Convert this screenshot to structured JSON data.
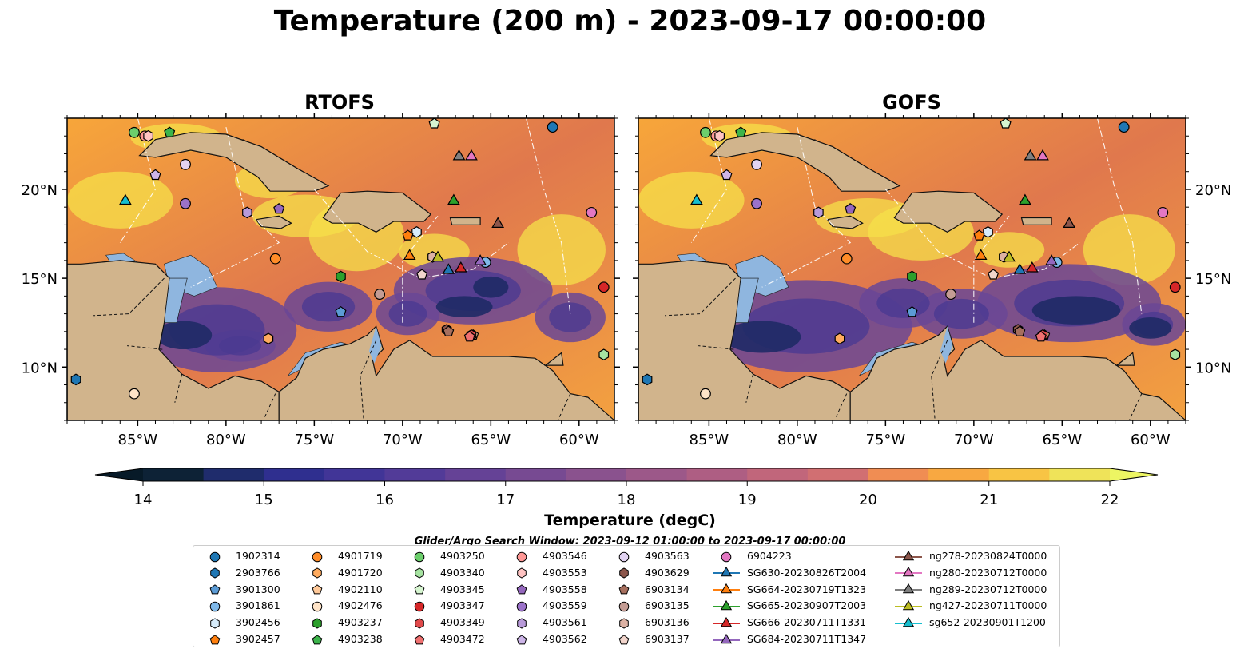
{
  "title": "Temperature (200 m) - 2023-09-17 00:00:00",
  "panels": [
    {
      "title": "RTOFS"
    },
    {
      "title": "GOFS"
    }
  ],
  "lat_ticks": [
    "10°N",
    "15°N",
    "20°N"
  ],
  "lon_ticks": [
    "85°W",
    "80°W",
    "75°W",
    "70°W",
    "65°W",
    "60°W"
  ],
  "map_extent": {
    "lon": [
      -89.0,
      -58.0
    ],
    "lat": [
      7.0,
      24.0
    ]
  },
  "colorbar": {
    "label": "Temperature (degC)",
    "ticks": [
      "14",
      "15",
      "16",
      "17",
      "18",
      "19",
      "20",
      "21",
      "22"
    ],
    "range": [
      14,
      22
    ],
    "colormap": "thermal",
    "extend": "both"
  },
  "search_window": "Glider/Argo Search Window: 2023-09-12 01:00:00 to 2023-09-17 00:00:00",
  "legend": [
    {
      "label": "1902314",
      "marker": "circle",
      "color": "#1f77b4"
    },
    {
      "label": "2903766",
      "marker": "hexagon",
      "color": "#1f77b4"
    },
    {
      "label": "3901300",
      "marker": "pentagon",
      "color": "#5b9bd5"
    },
    {
      "label": "3901861",
      "marker": "circle",
      "color": "#7fb8e8"
    },
    {
      "label": "3902456",
      "marker": "hexagon",
      "color": "#d7ecfb"
    },
    {
      "label": "3902457",
      "marker": "pentagon",
      "color": "#ff7f0e"
    },
    {
      "label": "4901719",
      "marker": "circle",
      "color": "#ff8c28"
    },
    {
      "label": "4901720",
      "marker": "hexagon",
      "color": "#ffab5e"
    },
    {
      "label": "4902110",
      "marker": "pentagon",
      "color": "#ffc999"
    },
    {
      "label": "4902476",
      "marker": "circle",
      "color": "#ffe4c8"
    },
    {
      "label": "4903237",
      "marker": "hexagon",
      "color": "#2ca02c"
    },
    {
      "label": "4903238",
      "marker": "pentagon",
      "color": "#3cb44b"
    },
    {
      "label": "4903250",
      "marker": "circle",
      "color": "#6ccf6c"
    },
    {
      "label": "4903340",
      "marker": "hexagon",
      "color": "#a6e3a1"
    },
    {
      "label": "4903345",
      "marker": "pentagon",
      "color": "#d6f5d0"
    },
    {
      "label": "4903347",
      "marker": "circle",
      "color": "#d62728"
    },
    {
      "label": "4903349",
      "marker": "hexagon",
      "color": "#e0494a"
    },
    {
      "label": "4903472",
      "marker": "pentagon",
      "color": "#f07070"
    },
    {
      "label": "4903546",
      "marker": "circle",
      "color": "#ff9896"
    },
    {
      "label": "4903553",
      "marker": "hexagon",
      "color": "#ffc3c2"
    },
    {
      "label": "4903558",
      "marker": "pentagon",
      "color": "#9467bd"
    },
    {
      "label": "4903559",
      "marker": "circle",
      "color": "#9b72c9"
    },
    {
      "label": "4903561",
      "marker": "hexagon",
      "color": "#b89ad9"
    },
    {
      "label": "4903562",
      "marker": "pentagon",
      "color": "#cdb5e8"
    },
    {
      "label": "4903563",
      "marker": "circle",
      "color": "#e2d3f2"
    },
    {
      "label": "4903629",
      "marker": "hexagon",
      "color": "#8c564b"
    },
    {
      "label": "6903134",
      "marker": "pentagon",
      "color": "#a66f5e"
    },
    {
      "label": "6903135",
      "marker": "circle",
      "color": "#c49c94"
    },
    {
      "label": "6903136",
      "marker": "hexagon",
      "color": "#ddb2a4"
    },
    {
      "label": "6903137",
      "marker": "pentagon",
      "color": "#f2d5cc"
    },
    {
      "label": "6904223",
      "marker": "circle",
      "color": "#e377c2"
    },
    {
      "label": "SG630-20230826T2004",
      "marker": "triangle-line",
      "color": "#1f77b4"
    },
    {
      "label": "SG664-20230719T1323",
      "marker": "triangle-line",
      "color": "#ff7f0e"
    },
    {
      "label": "SG665-20230907T2003",
      "marker": "triangle-line",
      "color": "#2ca02c"
    },
    {
      "label": "SG666-20230711T1331",
      "marker": "triangle-line",
      "color": "#d62728"
    },
    {
      "label": "SG684-20230711T1347",
      "marker": "triangle-line",
      "color": "#9467bd"
    },
    {
      "label": "ng278-20230824T0000",
      "marker": "triangle-line",
      "color": "#8c564b"
    },
    {
      "label": "ng280-20230712T0000",
      "marker": "triangle-line",
      "color": "#e377c2"
    },
    {
      "label": "ng289-20230712T0000",
      "marker": "triangle-line",
      "color": "#7f7f7f"
    },
    {
      "label": "ng427-20230711T0000",
      "marker": "triangle-line",
      "color": "#bcbd22"
    },
    {
      "label": "sg652-20230901T1200",
      "marker": "triangle-line",
      "color": "#17becf"
    }
  ],
  "observations": [
    {
      "id": "1902314",
      "lon": -61.5,
      "lat": 23.5
    },
    {
      "id": "2903766",
      "lon": -88.5,
      "lat": 9.3
    },
    {
      "id": "3901300",
      "lon": -73.5,
      "lat": 13.1
    },
    {
      "id": "3901861",
      "lon": -65.3,
      "lat": 15.9
    },
    {
      "id": "3902456",
      "lon": -69.2,
      "lat": 17.6
    },
    {
      "id": "3902457",
      "lon": -69.7,
      "lat": 17.4
    },
    {
      "id": "4901719",
      "lon": -77.2,
      "lat": 16.1
    },
    {
      "id": "4901720",
      "lon": -77.6,
      "lat": 11.6
    },
    {
      "id": "4902110",
      "lon": -66.0,
      "lat": 11.8
    },
    {
      "id": "4902476",
      "lon": -85.2,
      "lat": 8.5
    },
    {
      "id": "4903237",
      "lon": -73.5,
      "lat": 15.1
    },
    {
      "id": "4903238",
      "lon": -83.2,
      "lat": 23.2
    },
    {
      "id": "4903250",
      "lon": -85.2,
      "lat": 23.2
    },
    {
      "id": "4903340",
      "lon": -58.6,
      "lat": 10.7
    },
    {
      "id": "4903345",
      "lon": -68.2,
      "lat": 23.7
    },
    {
      "id": "4903347",
      "lon": -58.6,
      "lat": 14.5
    },
    {
      "id": "4903349",
      "lon": -66.1,
      "lat": 11.8
    },
    {
      "id": "4903472",
      "lon": -66.2,
      "lat": 11.7
    },
    {
      "id": "4903546",
      "lon": -84.6,
      "lat": 23.0
    },
    {
      "id": "4903553",
      "lon": -84.4,
      "lat": 23.0
    },
    {
      "id": "4903558",
      "lon": -77.0,
      "lat": 18.9
    },
    {
      "id": "4903559",
      "lon": -82.3,
      "lat": 19.2
    },
    {
      "id": "4903561",
      "lon": -78.8,
      "lat": 18.7
    },
    {
      "id": "4903562",
      "lon": -84.0,
      "lat": 20.8
    },
    {
      "id": "4903563",
      "lon": -82.3,
      "lat": 21.4
    },
    {
      "id": "4903629",
      "lon": -67.5,
      "lat": 12.1
    },
    {
      "id": "6903134",
      "lon": -67.4,
      "lat": 12.0
    },
    {
      "id": "6903135",
      "lon": -71.3,
      "lat": 14.1
    },
    {
      "id": "6903136",
      "lon": -68.3,
      "lat": 16.2
    },
    {
      "id": "6903137",
      "lon": -68.9,
      "lat": 15.2
    },
    {
      "id": "6904223",
      "lon": -59.3,
      "lat": 18.7
    },
    {
      "id": "SG630-20230826T2004",
      "lon": -67.4,
      "lat": 15.5
    },
    {
      "id": "SG664-20230719T1323",
      "lon": -69.6,
      "lat": 16.3
    },
    {
      "id": "SG665-20230907T2003",
      "lon": -67.1,
      "lat": 19.4
    },
    {
      "id": "SG666-20230711T1331",
      "lon": -66.7,
      "lat": 15.6
    },
    {
      "id": "SG684-20230711T1347",
      "lon": -65.6,
      "lat": 16.0
    },
    {
      "id": "ng278-20230824T0000",
      "lon": -64.6,
      "lat": 18.1
    },
    {
      "id": "ng280-20230712T0000",
      "lon": -66.1,
      "lat": 21.9
    },
    {
      "id": "ng289-20230712T0000",
      "lon": -66.8,
      "lat": 21.9
    },
    {
      "id": "ng427-20230711T0000",
      "lon": -68.0,
      "lat": 16.2
    },
    {
      "id": "sg652-20230901T1200",
      "lon": -85.7,
      "lat": 19.4
    }
  ]
}
